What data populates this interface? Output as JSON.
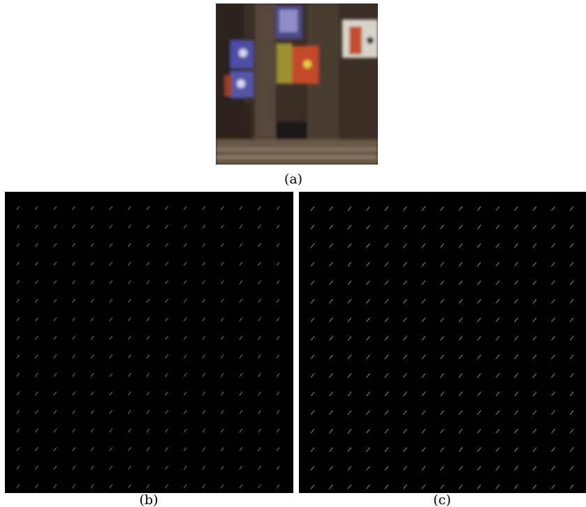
{
  "figure": {
    "captions": {
      "a": "(a)",
      "b": "(b)",
      "c": "(c)"
    }
  }
}
